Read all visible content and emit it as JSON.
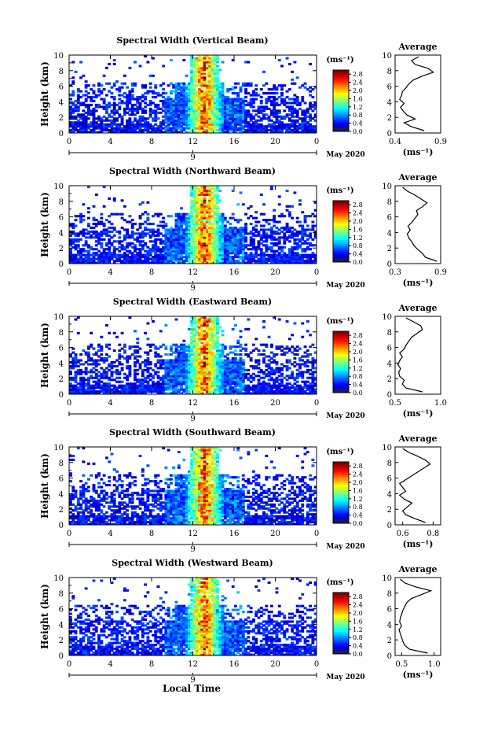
{
  "figure": {
    "date_label": "May 2020",
    "bottom_xlabel": "Local Time"
  },
  "chart_data": [
    {
      "type": "heatmap",
      "title": "Spectral Width (Vertical Beam)",
      "ylabel": "Height (km)",
      "xlabel": "",
      "xlim": [
        0,
        24
      ],
      "ylim": [
        0,
        10
      ],
      "xticks": [
        "0",
        "4",
        "8",
        "12",
        "16",
        "20",
        "0"
      ],
      "yticks": [
        "0",
        "2",
        "4",
        "6",
        "8",
        "10"
      ],
      "date_tick": "9",
      "colorbar": {
        "unit": "(ms⁻¹)",
        "ticks": [
          "0.0",
          "0.4",
          "0.8",
          "1.2",
          "1.6",
          "2.0",
          "2.4",
          "2.8"
        ],
        "range": [
          0,
          3.0
        ]
      },
      "profile": {
        "title": "Average",
        "xlabel": "(ms⁻¹)",
        "xticks": [
          "0.4",
          "0.9"
        ],
        "xlim": [
          0.4,
          0.9
        ],
        "yticks": [
          "0",
          "2",
          "4",
          "6",
          "8",
          "10"
        ],
        "heights": [
          0.3,
          0.8,
          1.3,
          1.8,
          2.3,
          2.8,
          3.3,
          3.8,
          4.3,
          4.8,
          5.3,
          5.8,
          6.3,
          6.8,
          7.3,
          7.8,
          8.3,
          8.8,
          9.3,
          9.8
        ],
        "values": [
          0.72,
          0.58,
          0.5,
          0.62,
          0.53,
          0.49,
          0.46,
          0.5,
          0.45,
          0.47,
          0.48,
          0.52,
          0.55,
          0.6,
          0.7,
          0.82,
          0.76,
          0.62,
          0.58,
          0.66
        ]
      }
    },
    {
      "type": "heatmap",
      "title": "Spectral Width (Northward Beam)",
      "ylabel": "Height (km)",
      "xlabel": "",
      "xlim": [
        0,
        24
      ],
      "ylim": [
        0,
        10
      ],
      "xticks": [
        "0",
        "4",
        "8",
        "12",
        "16",
        "20",
        "0"
      ],
      "yticks": [
        "0",
        "2",
        "4",
        "6",
        "8",
        "10"
      ],
      "date_tick": "9",
      "colorbar": {
        "unit": "(ms⁻¹)",
        "ticks": [
          "0.0",
          "0.4",
          "0.8",
          "1.2",
          "1.6",
          "2.0",
          "2.4",
          "2.8"
        ],
        "range": [
          0,
          3.0
        ]
      },
      "profile": {
        "title": "Average",
        "xlabel": "(ms⁻¹)",
        "xticks": [
          "0.3",
          "0.9"
        ],
        "xlim": [
          0.3,
          0.9
        ],
        "yticks": [
          "0",
          "2",
          "4",
          "6",
          "8",
          "10"
        ],
        "heights": [
          0.3,
          0.8,
          1.3,
          1.8,
          2.3,
          2.8,
          3.3,
          3.8,
          4.3,
          4.8,
          5.3,
          5.8,
          6.3,
          6.8,
          7.3,
          7.8,
          8.3,
          8.8,
          9.3,
          9.8
        ],
        "values": [
          0.85,
          0.7,
          0.66,
          0.6,
          0.55,
          0.52,
          0.48,
          0.46,
          0.5,
          0.47,
          0.52,
          0.56,
          0.6,
          0.58,
          0.66,
          0.72,
          0.64,
          0.56,
          0.46,
          0.4
        ]
      }
    },
    {
      "type": "heatmap",
      "title": "Spectral Width (Eastward Beam)",
      "ylabel": "Height (km)",
      "xlabel": "",
      "xlim": [
        0,
        24
      ],
      "ylim": [
        0,
        10
      ],
      "xticks": [
        "0",
        "4",
        "8",
        "12",
        "16",
        "20",
        "0"
      ],
      "yticks": [
        "0",
        "2",
        "4",
        "6",
        "8",
        "10"
      ],
      "date_tick": "9",
      "colorbar": {
        "unit": "(ms⁻¹)",
        "ticks": [
          "0.0",
          "0.4",
          "0.8",
          "1.2",
          "1.6",
          "2.0",
          "2.4",
          "2.8"
        ],
        "range": [
          0,
          3.0
        ]
      },
      "profile": {
        "title": "Average",
        "xlabel": "(ms⁻¹)",
        "xticks": [
          "0.5",
          "1.0"
        ],
        "xlim": [
          0.5,
          1.0
        ],
        "yticks": [
          "0",
          "2",
          "4",
          "6",
          "8",
          "10"
        ],
        "heights": [
          0.3,
          0.8,
          1.3,
          1.8,
          2.3,
          2.8,
          3.3,
          3.8,
          4.3,
          4.8,
          5.3,
          5.8,
          6.3,
          6.8,
          7.3,
          7.8,
          8.3,
          8.8,
          9.3,
          9.8
        ],
        "values": [
          0.8,
          0.62,
          0.58,
          0.6,
          0.55,
          0.54,
          0.56,
          0.53,
          0.55,
          0.58,
          0.55,
          0.6,
          0.62,
          0.65,
          0.68,
          0.74,
          0.8,
          0.78,
          0.7,
          0.62
        ]
      }
    },
    {
      "type": "heatmap",
      "title": "Spectral Width (Southward Beam)",
      "ylabel": "Height (km)",
      "xlabel": "",
      "xlim": [
        0,
        24
      ],
      "ylim": [
        0,
        10
      ],
      "xticks": [
        "0",
        "4",
        "8",
        "12",
        "16",
        "20",
        "0"
      ],
      "yticks": [
        "0",
        "2",
        "4",
        "6",
        "8",
        "10"
      ],
      "date_tick": "9",
      "colorbar": {
        "unit": "(ms⁻¹)",
        "ticks": [
          "0.0",
          "0.4",
          "0.8",
          "1.2",
          "1.6",
          "2.0",
          "2.4",
          "2.8"
        ],
        "range": [
          0,
          3.0
        ]
      },
      "profile": {
        "title": "Average",
        "xlabel": "(ms⁻¹)",
        "xticks": [
          "0.6",
          "0.8"
        ],
        "xlim": [
          0.55,
          0.85
        ],
        "yticks": [
          "0",
          "2",
          "4",
          "6",
          "8",
          "10"
        ],
        "heights": [
          0.3,
          0.8,
          1.3,
          1.8,
          2.3,
          2.8,
          3.3,
          3.8,
          4.3,
          4.8,
          5.3,
          5.8,
          6.3,
          6.8,
          7.3,
          7.8,
          8.3,
          8.8,
          9.3,
          9.8
        ],
        "values": [
          0.75,
          0.68,
          0.62,
          0.6,
          0.63,
          0.66,
          0.61,
          0.58,
          0.62,
          0.6,
          0.58,
          0.62,
          0.66,
          0.7,
          0.74,
          0.78,
          0.75,
          0.7,
          0.64,
          0.6
        ]
      }
    },
    {
      "type": "heatmap",
      "title": "Spectral Width (Westward Beam)",
      "ylabel": "Height (km)",
      "xlabel": "",
      "xlim": [
        0,
        24
      ],
      "ylim": [
        0,
        10
      ],
      "xticks": [
        "0",
        "4",
        "8",
        "12",
        "16",
        "20",
        "0"
      ],
      "yticks": [
        "0",
        "2",
        "4",
        "6",
        "8",
        "10"
      ],
      "date_tick": "9",
      "colorbar": {
        "unit": "(ms⁻¹)",
        "ticks": [
          "0.0",
          "0.4",
          "0.8",
          "1.2",
          "1.6",
          "2.0",
          "2.4",
          "2.8"
        ],
        "range": [
          0,
          3.0
        ]
      },
      "profile": {
        "title": "Average",
        "xlabel": "(ms⁻¹)",
        "xticks": [
          "0.5",
          "1.0"
        ],
        "xlim": [
          0.4,
          1.1
        ],
        "yticks": [
          "0",
          "2",
          "4",
          "6",
          "8",
          "10"
        ],
        "heights": [
          0.3,
          0.8,
          1.3,
          1.8,
          2.3,
          2.8,
          3.3,
          3.8,
          4.3,
          4.8,
          5.3,
          5.8,
          6.3,
          6.8,
          7.3,
          7.8,
          8.3,
          8.8,
          9.3,
          9.8
        ],
        "values": [
          0.9,
          0.62,
          0.55,
          0.52,
          0.5,
          0.48,
          0.46,
          0.5,
          0.47,
          0.48,
          0.5,
          0.52,
          0.55,
          0.58,
          0.65,
          0.8,
          0.95,
          0.72,
          0.55,
          0.48
        ]
      }
    }
  ]
}
